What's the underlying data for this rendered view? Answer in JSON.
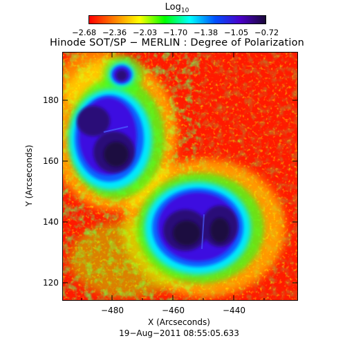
{
  "colorbar": {
    "title_base": "Log",
    "title_sub": "10",
    "ticks": [
      "−2.68",
      "−2.36",
      "−2.03",
      "−1.70",
      "−1.38",
      "−1.05",
      "−0.72"
    ],
    "gradient": [
      "#ff0000",
      "#ff7f00",
      "#ffff00",
      "#00ff00",
      "#00ffff",
      "#0050ff",
      "#4a00c8",
      "#1a0838"
    ]
  },
  "title": "Hinode SOT/SP − MERLIN : Degree of Polarization",
  "axes": {
    "x_label": "X (Arcseconds)",
    "y_label": "Y (Arcseconds)",
    "x_ticks": [
      "−480",
      "−460",
      "−440"
    ],
    "y_ticks": [
      "180",
      "160",
      "140",
      "120"
    ]
  },
  "timestamp": "19−Aug−2011 08:55:05.633"
}
